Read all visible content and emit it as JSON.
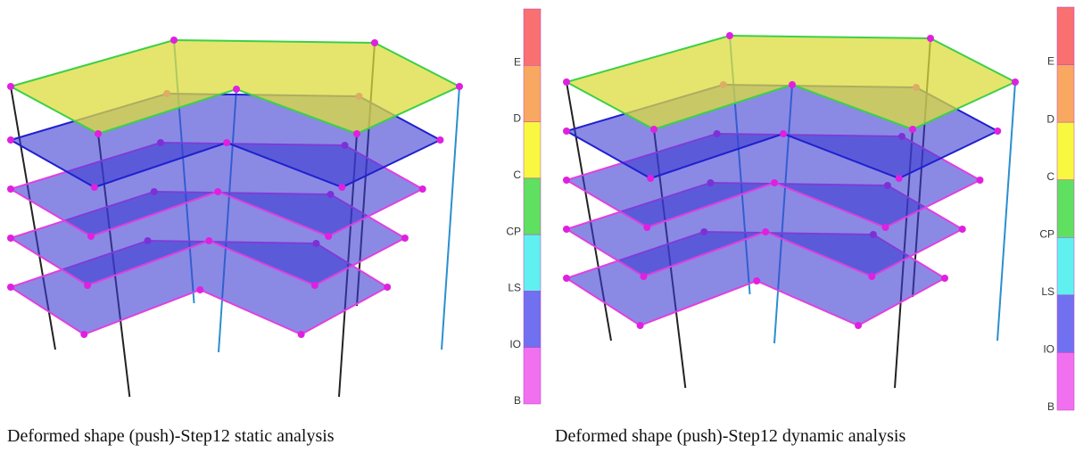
{
  "panels": [
    {
      "caption": "Deformed shape (push)-Step12 static analysis",
      "legend": [
        "E",
        "D",
        "C",
        "CP",
        "LS",
        "IO",
        "B"
      ]
    },
    {
      "caption": "Deformed shape (push)-Step12 dynamic analysis",
      "legend": [
        "E",
        "D",
        "C",
        "CP",
        "LS",
        "IO",
        "B"
      ]
    }
  ]
}
